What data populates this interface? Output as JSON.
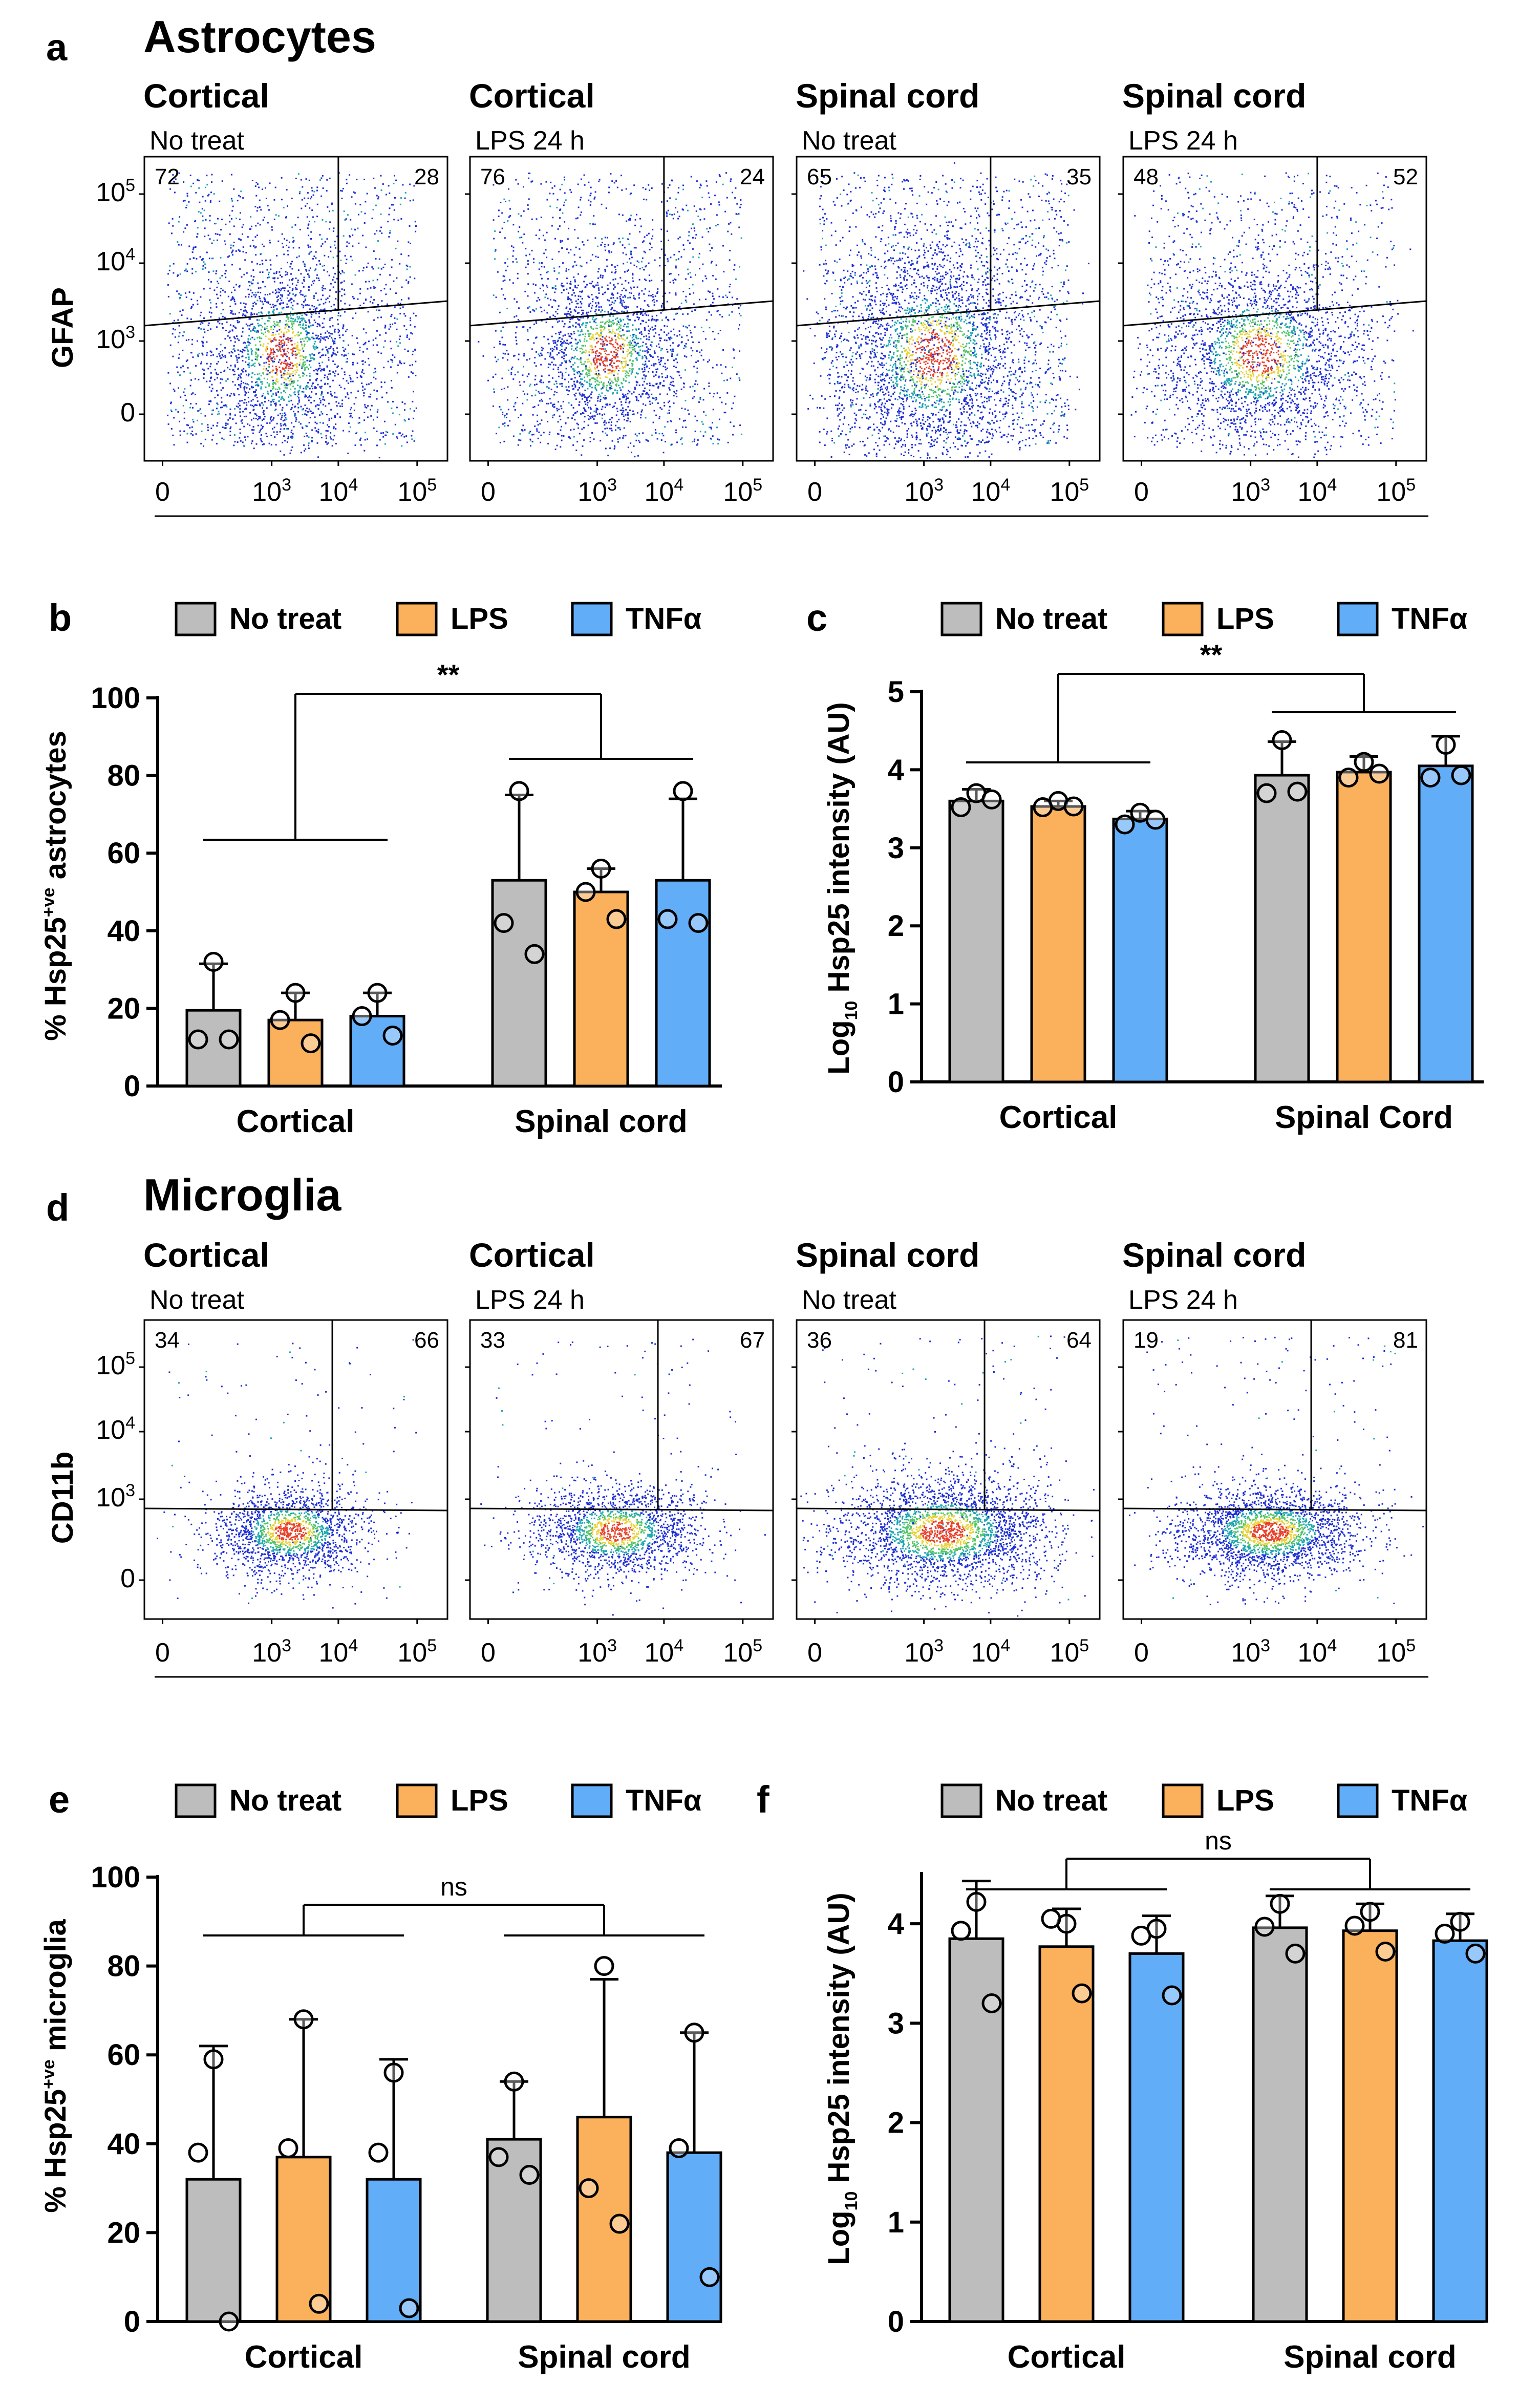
{
  "colors": {
    "no_treat": "#bdbdbd",
    "lps": "#fbb15c",
    "tnf": "#62adf7",
    "axis": "#000000"
  },
  "legend": {
    "no_treat": "No treat",
    "lps": "LPS",
    "tnf": "TNFα"
  },
  "panel_a": {
    "letter": "a",
    "title": "Astrocytes",
    "y_axis_label": "GFAP",
    "y_ticks": [
      {
        "base": "10",
        "exp": "5"
      },
      {
        "base": "10",
        "exp": "4"
      },
      {
        "base": "10",
        "exp": "3"
      },
      {
        "base": "0",
        "exp": ""
      }
    ],
    "x_ticks": [
      {
        "base": "0",
        "exp": ""
      },
      {
        "base": "10",
        "exp": "3"
      },
      {
        "base": "10",
        "exp": "4"
      },
      {
        "base": "10",
        "exp": "5"
      }
    ],
    "plots": [
      {
        "tissue": "Cortical",
        "condition": "No treat",
        "left_pct": "72",
        "right_pct": "28"
      },
      {
        "tissue": "Cortical",
        "condition": "LPS 24 h",
        "left_pct": "76",
        "right_pct": "24"
      },
      {
        "tissue": "Spinal cord",
        "condition": "No treat",
        "left_pct": "65",
        "right_pct": "35"
      },
      {
        "tissue": "Spinal cord",
        "condition": "LPS 24 h",
        "left_pct": "48",
        "right_pct": "52"
      }
    ]
  },
  "panel_d": {
    "letter": "d",
    "title": "Microglia",
    "y_axis_label": "CD11b",
    "y_ticks": [
      {
        "base": "10",
        "exp": "5"
      },
      {
        "base": "10",
        "exp": "4"
      },
      {
        "base": "10",
        "exp": "3"
      },
      {
        "base": "0",
        "exp": ""
      }
    ],
    "x_ticks": [
      {
        "base": "0",
        "exp": ""
      },
      {
        "base": "10",
        "exp": "3"
      },
      {
        "base": "10",
        "exp": "4"
      },
      {
        "base": "10",
        "exp": "5"
      }
    ],
    "plots": [
      {
        "tissue": "Cortical",
        "condition": "No treat",
        "left_pct": "34",
        "right_pct": "66"
      },
      {
        "tissue": "Cortical",
        "condition": "LPS 24 h",
        "left_pct": "33",
        "right_pct": "67"
      },
      {
        "tissue": "Spinal cord",
        "condition": "No treat",
        "left_pct": "36",
        "right_pct": "64"
      },
      {
        "tissue": "Spinal cord",
        "condition": "LPS 24 h",
        "left_pct": "19",
        "right_pct": "81"
      }
    ]
  },
  "chart_data": [
    {
      "id": "b",
      "type": "bar",
      "ylabel": "% Hsp25+ve astrocytes",
      "ylabel_main": "% Hsp25",
      "ylabel_sup": "+ve",
      "ylabel_tail": " astrocytes",
      "ylim": [
        0,
        100
      ],
      "yticks": [
        0,
        20,
        40,
        60,
        80,
        100
      ],
      "categories": [
        "Cortical",
        "Spinal cord"
      ],
      "significance": "**",
      "series": [
        {
          "name": "No treat",
          "values": [
            19.5,
            53
          ],
          "errors": [
            12,
            22
          ],
          "points": [
            [
              32,
              12,
              12
            ],
            [
              76,
              42,
              34
            ]
          ]
        },
        {
          "name": "LPS",
          "values": [
            17,
            50
          ],
          "errors": [
            7,
            6
          ],
          "points": [
            [
              24,
              17,
              11
            ],
            [
              56,
              50,
              43
            ]
          ]
        },
        {
          "name": "TNFα",
          "values": [
            18,
            53
          ],
          "errors": [
            6,
            21
          ],
          "points": [
            [
              24,
              18,
              13
            ],
            [
              76,
              43,
              42
            ]
          ]
        }
      ]
    },
    {
      "id": "c",
      "type": "bar",
      "ylabel": "Log10 Hsp25 intensity (AU)",
      "ylabel_main": "Log",
      "ylabel_sub": "10",
      "ylabel_tail": " Hsp25 intensity (AU)",
      "ylim": [
        0,
        5
      ],
      "yticks": [
        0,
        1,
        2,
        3,
        4,
        5
      ],
      "categories": [
        "Cortical",
        "Spinal Cord"
      ],
      "significance": "**",
      "series": [
        {
          "name": "No treat",
          "values": [
            3.6,
            3.93
          ],
          "errors": [
            0.15,
            0.43
          ],
          "points": [
            [
              3.7,
              3.52,
              3.62
            ],
            [
              4.38,
              3.7,
              3.72
            ]
          ]
        },
        {
          "name": "LPS",
          "values": [
            3.53,
            3.97
          ],
          "errors": [
            0.07,
            0.2
          ],
          "points": [
            [
              3.6,
              3.52,
              3.53
            ],
            [
              4.1,
              3.9,
              3.95
            ]
          ]
        },
        {
          "name": "TNFα",
          "values": [
            3.37,
            4.05
          ],
          "errors": [
            0.1,
            0.38
          ],
          "points": [
            [
              3.45,
              3.3,
              3.36
            ],
            [
              4.32,
              3.9,
              3.93
            ]
          ]
        }
      ]
    },
    {
      "id": "e",
      "type": "bar",
      "ylabel": "% Hsp25+ve microglia",
      "ylabel_main": "% Hsp25",
      "ylabel_sup": "+ve",
      "ylabel_tail": " microglia",
      "ylim": [
        0,
        100
      ],
      "yticks": [
        0,
        20,
        40,
        60,
        80,
        100
      ],
      "categories": [
        "Cortical",
        "Spinal cord"
      ],
      "significance": "ns",
      "series": [
        {
          "name": "No treat",
          "values": [
            32,
            41
          ],
          "errors": [
            30,
            13
          ],
          "points": [
            [
              59,
              38,
              0
            ],
            [
              54,
              37,
              33
            ]
          ]
        },
        {
          "name": "LPS",
          "values": [
            37,
            46
          ],
          "errors": [
            31,
            31
          ],
          "points": [
            [
              68,
              39,
              4
            ],
            [
              80,
              30,
              22
            ]
          ]
        },
        {
          "name": "TNFα",
          "values": [
            32,
            38
          ],
          "errors": [
            27,
            27
          ],
          "points": [
            [
              56,
              38,
              3
            ],
            [
              65,
              39,
              10
            ]
          ]
        }
      ]
    },
    {
      "id": "f",
      "type": "bar",
      "ylabel": "Log10 Hsp25 intensity (AU)",
      "ylabel_main": "Log",
      "ylabel_sub": "10",
      "ylabel_tail": " Hsp25 intensity (AU)",
      "ylim": [
        0,
        4.5
      ],
      "yticks": [
        0,
        1,
        2,
        3,
        4
      ],
      "categories": [
        "Cortical",
        "Spinal cord"
      ],
      "significance": "ns",
      "series": [
        {
          "name": "No treat",
          "values": [
            3.85,
            3.96
          ],
          "errors": [
            0.58,
            0.32
          ],
          "points": [
            [
              4.22,
              3.93,
              3.2
            ],
            [
              4.2,
              3.97,
              3.7
            ]
          ]
        },
        {
          "name": "LPS",
          "values": [
            3.77,
            3.93
          ],
          "errors": [
            0.38,
            0.27
          ],
          "points": [
            [
              4.0,
              4.05,
              3.3
            ],
            [
              4.12,
              3.98,
              3.72
            ]
          ]
        },
        {
          "name": "TNFα",
          "values": [
            3.7,
            3.83
          ],
          "errors": [
            0.38,
            0.27
          ],
          "points": [
            [
              3.95,
              3.88,
              3.28
            ],
            [
              4.02,
              3.9,
              3.7
            ]
          ]
        }
      ]
    }
  ]
}
